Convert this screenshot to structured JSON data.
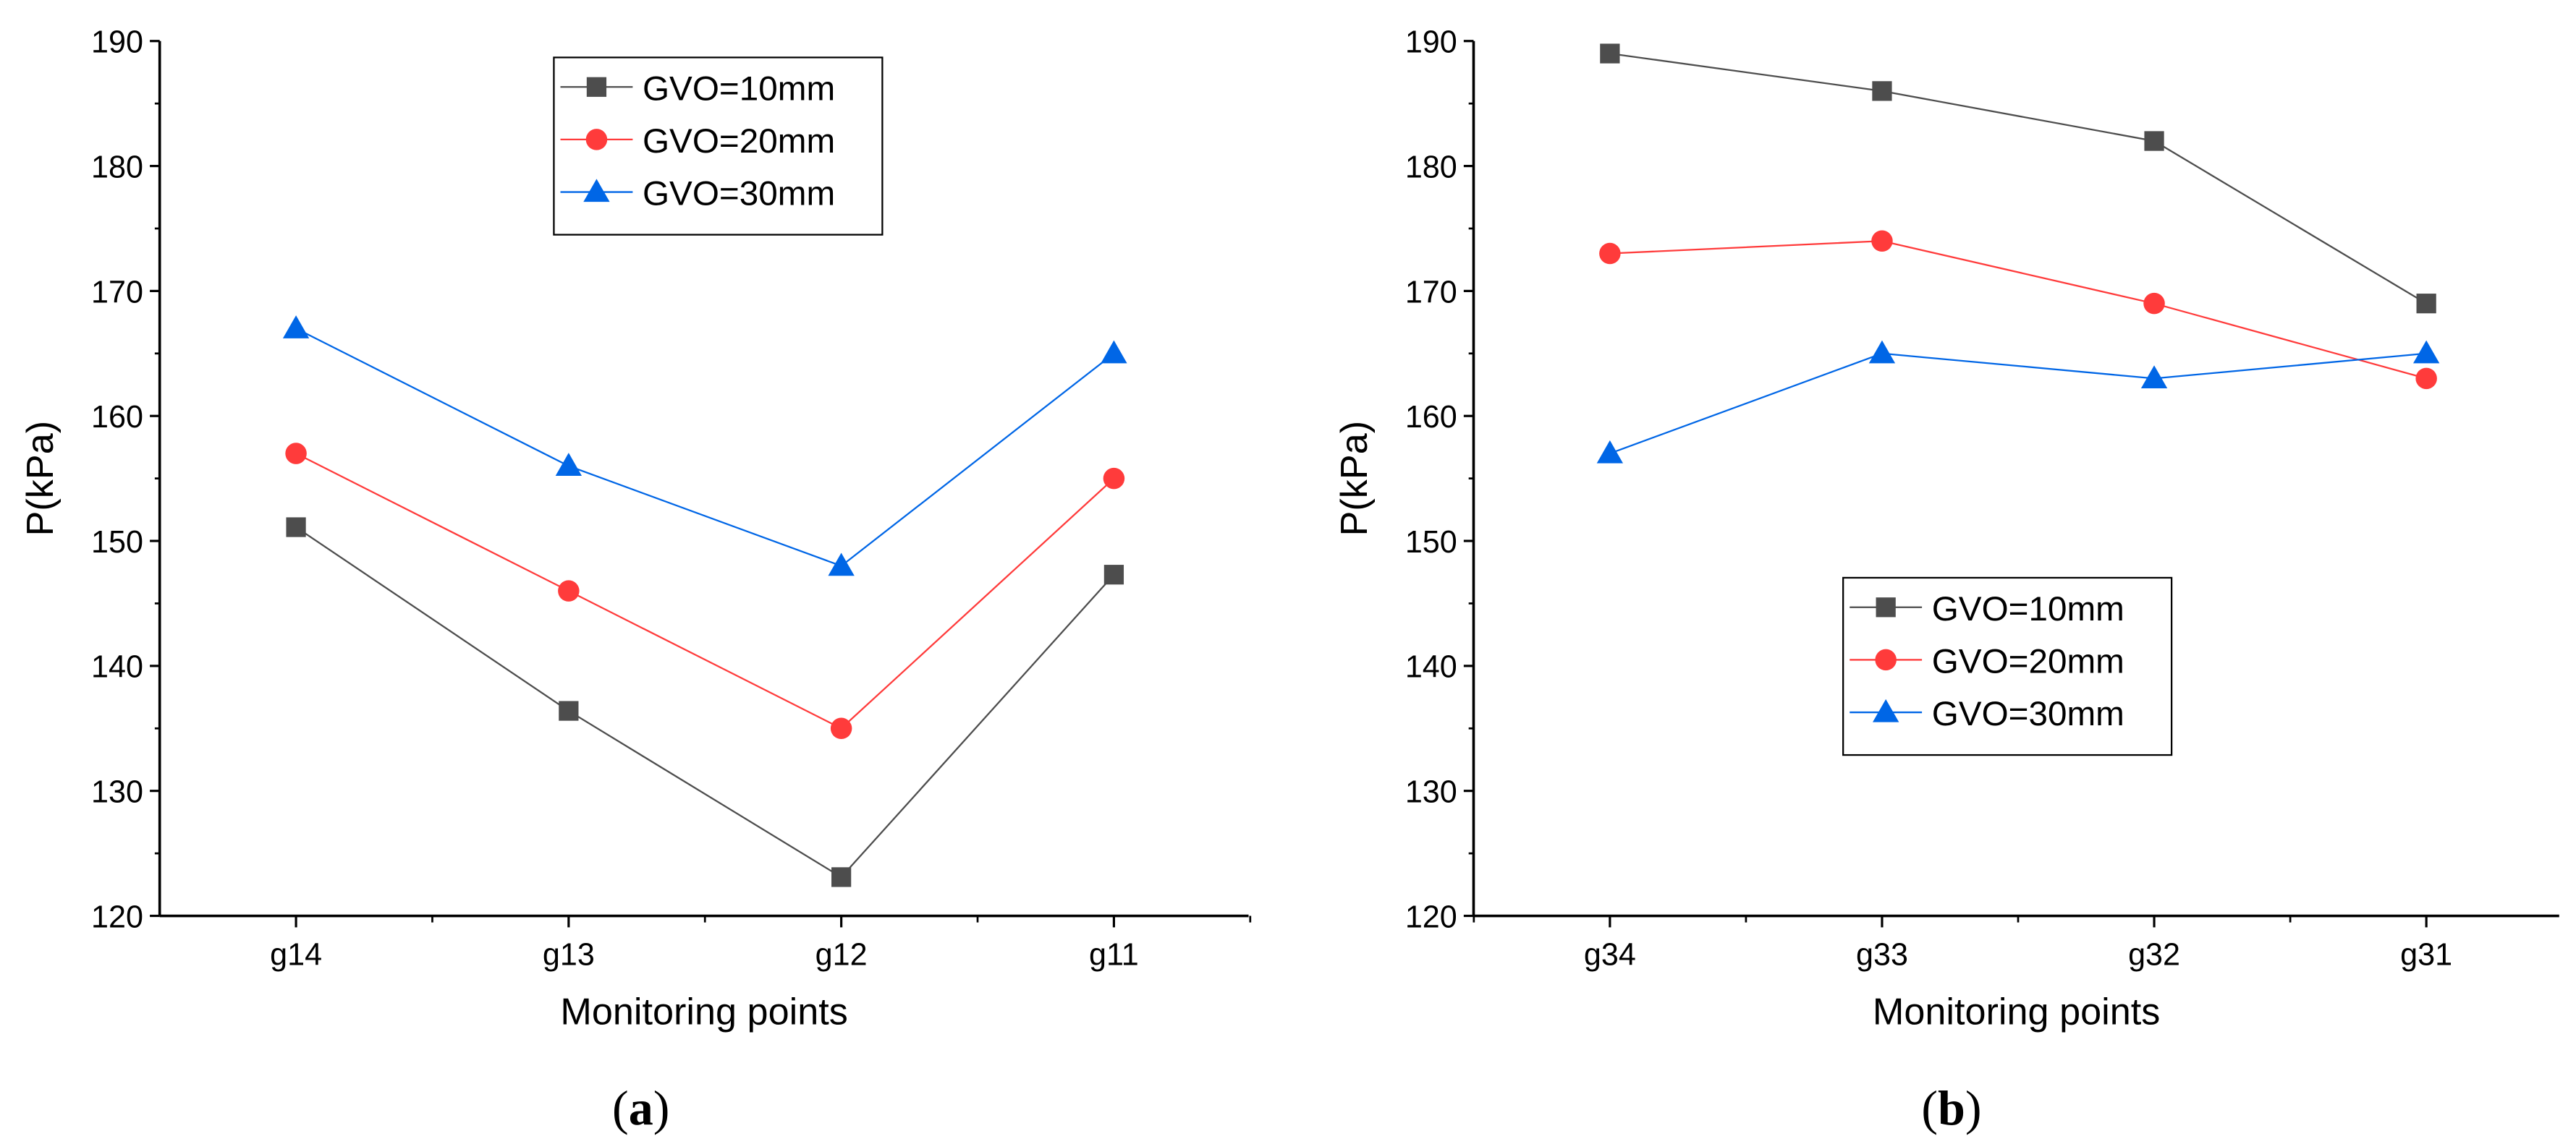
{
  "chart_data": [
    {
      "type": "line",
      "panel_label": "a",
      "categories": [
        "g14",
        "g13",
        "g12",
        "g11"
      ],
      "series": [
        {
          "name": "GVO=10mm",
          "marker": "square",
          "color": "#4d4d4d",
          "values": [
            151.1,
            136.4,
            123.1,
            147.3
          ]
        },
        {
          "name": "GVO=20mm",
          "marker": "circle",
          "color": "#ff3b3b",
          "values": [
            157,
            146,
            135,
            155
          ]
        },
        {
          "name": "GVO=30mm",
          "marker": "triangle",
          "color": "#0066e6",
          "values": [
            167,
            156,
            148,
            165
          ]
        }
      ],
      "xlabel": "Monitoring points",
      "ylabel": "P(kPa)",
      "ylim": [
        120,
        190
      ],
      "yticks": [
        120,
        130,
        140,
        150,
        160,
        170,
        180,
        190
      ],
      "legend": "top-center",
      "grid": false
    },
    {
      "type": "line",
      "panel_label": "b",
      "categories": [
        "g34",
        "g33",
        "g32",
        "g31"
      ],
      "series": [
        {
          "name": "GVO=10mm",
          "marker": "square",
          "color": "#4d4d4d",
          "values": [
            189,
            186,
            182,
            169
          ]
        },
        {
          "name": "GVO=20mm",
          "marker": "circle",
          "color": "#ff3b3b",
          "values": [
            173,
            174,
            169,
            163
          ]
        },
        {
          "name": "GVO=30mm",
          "marker": "triangle",
          "color": "#0066e6",
          "values": [
            157,
            165,
            163,
            165
          ]
        }
      ],
      "xlabel": "Monitoring points",
      "ylabel": "P(kPa)",
      "ylim": [
        120,
        190
      ],
      "yticks": [
        120,
        130,
        140,
        150,
        160,
        170,
        180,
        190
      ],
      "legend": "center",
      "grid": false
    }
  ]
}
